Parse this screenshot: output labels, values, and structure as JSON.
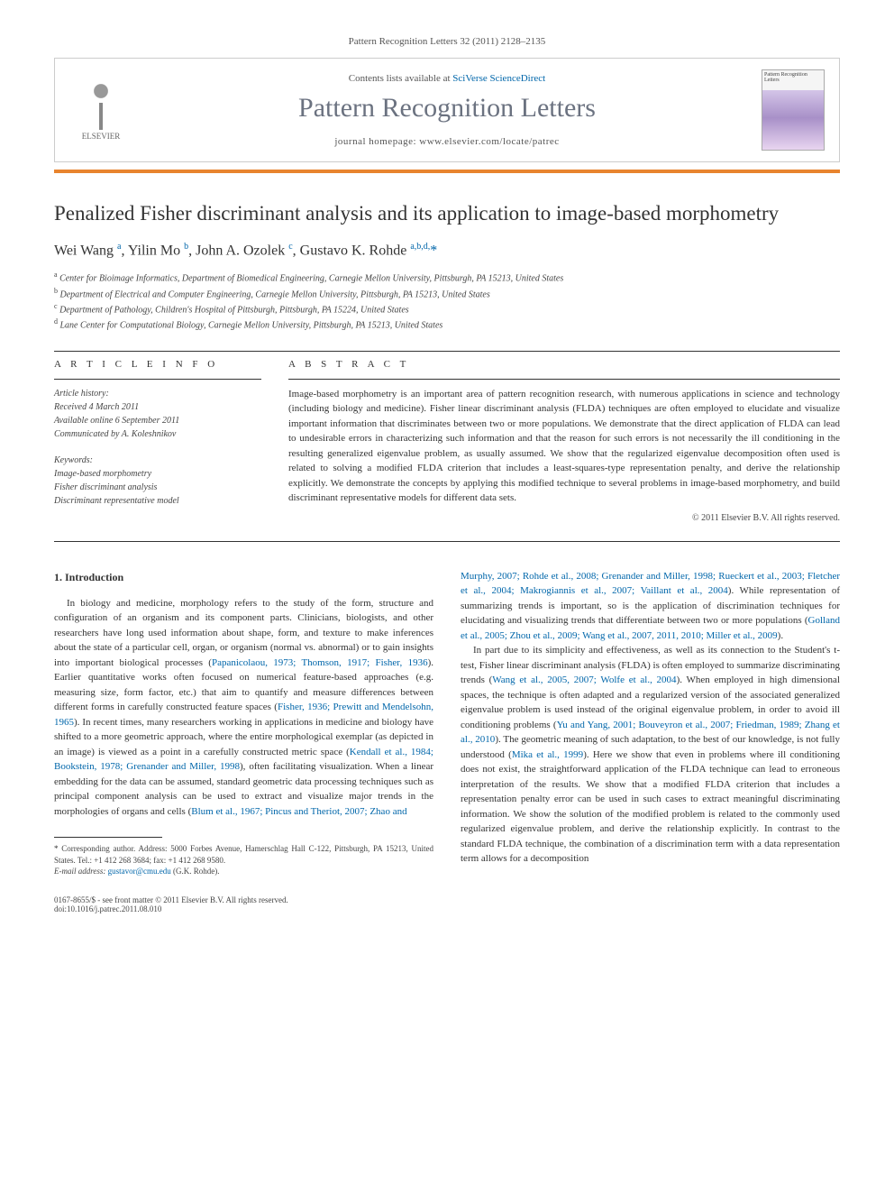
{
  "journal_ref": "Pattern Recognition Letters 32 (2011) 2128–2135",
  "header": {
    "elsevier": "ELSEVIER",
    "contents_prefix": "Contents lists available at ",
    "contents_link": "SciVerse ScienceDirect",
    "journal_title": "Pattern Recognition Letters",
    "homepage_prefix": "journal homepage: ",
    "homepage_url": "www.elsevier.com/locate/patrec",
    "cover_text": "Pattern Recognition Letters"
  },
  "title": "Penalized Fisher discriminant analysis and its application to image-based morphometry",
  "authors_html": "Wei Wang <sup>a</sup>, Yilin Mo <sup>b</sup>, John A. Ozolek <sup>c</sup>, Gustavo K. Rohde <sup>a,b,d,</sup><span class='star'>*</span>",
  "affiliations": [
    {
      "sup": "a",
      "text": "Center for Bioimage Informatics, Department of Biomedical Engineering, Carnegie Mellon University, Pittsburgh, PA 15213, United States"
    },
    {
      "sup": "b",
      "text": "Department of Electrical and Computer Engineering, Carnegie Mellon University, Pittsburgh, PA 15213, United States"
    },
    {
      "sup": "c",
      "text": "Department of Pathology, Children's Hospital of Pittsburgh, Pittsburgh, PA 15224, United States"
    },
    {
      "sup": "d",
      "text": "Lane Center for Computational Biology, Carnegie Mellon University, Pittsburgh, PA 15213, United States"
    }
  ],
  "info_heading": "A R T I C L E   I N F O",
  "abstract_heading": "A B S T R A C T",
  "history_label": "Article history:",
  "history": {
    "received": "Received 4 March 2011",
    "online": "Available online 6 September 2011",
    "communicated": "Communicated by A. Koleshnikov"
  },
  "keywords_label": "Keywords:",
  "keywords": [
    "Image-based morphometry",
    "Fisher discriminant analysis",
    "Discriminant representative model"
  ],
  "abstract": "Image-based morphometry is an important area of pattern recognition research, with numerous applications in science and technology (including biology and medicine). Fisher linear discriminant analysis (FLDA) techniques are often employed to elucidate and visualize important information that discriminates between two or more populations. We demonstrate that the direct application of FLDA can lead to undesirable errors in characterizing such information and that the reason for such errors is not necessarily the ill conditioning in the resulting generalized eigenvalue problem, as usually assumed. We show that the regularized eigenvalue decomposition often used is related to solving a modified FLDA criterion that includes a least-squares-type representation penalty, and derive the relationship explicitly. We demonstrate the concepts by applying this modified technique to several problems in image-based morphometry, and build discriminant representative models for different data sets.",
  "copyright": "© 2011 Elsevier B.V. All rights reserved.",
  "section1_heading": "1. Introduction",
  "col1_p1a": "In biology and medicine, morphology refers to the study of the form, structure and configuration of an organism and its component parts. Clinicians, biologists, and other researchers have long used information about shape, form, and texture to make inferences about the state of a particular cell, organ, or organism (normal vs. abnormal) or to gain insights into important biological processes (",
  "col1_cite1": "Papanicolaou, 1973; Thomson, 1917; Fisher, 1936",
  "col1_p1b": "). Earlier quantitative works often focused on numerical feature-based approaches (e.g. measuring size, form factor, etc.) that aim to quantify and measure differences between different forms in carefully constructed feature spaces (",
  "col1_cite2": "Fisher, 1936; Prewitt and Mendelsohn, 1965",
  "col1_p1c": "). In recent times, many researchers working in applications in medicine and biology have shifted to a more geometric approach, where the entire morphological exemplar (as depicted in an image) is viewed as a point in a carefully constructed metric space (",
  "col1_cite3": "Kendall et al., 1984; Bookstein, 1978; Grenander and Miller, 1998",
  "col1_p1d": "), often facilitating visualization. When a linear embedding for the data can be assumed, standard geometric data processing techniques such as principal component analysis can be used to extract and visualize major trends in the morphologies of organs and cells (",
  "col1_cite4": "Blum et al., 1967; Pincus and Theriot, 2007; Zhao and",
  "col2_cite1": "Murphy, 2007; Rohde et al., 2008; Grenander and Miller, 1998; Rueckert et al., 2003; Fletcher et al., 2004; Makrogiannis et al., 2007; Vaillant et al., 2004",
  "col2_p1a": "). While representation of summarizing trends is important, so is the application of discrimination techniques for elucidating and visualizing trends that differentiate between two or more populations (",
  "col2_cite2": "Golland et al., 2005; Zhou et al., 2009; Wang et al., 2007, 2011, 2010; Miller et al., 2009",
  "col2_p1b": ").",
  "col2_p2a": "In part due to its simplicity and effectiveness, as well as its connection to the Student's t-test, Fisher linear discriminant analysis (FLDA) is often employed to summarize discriminating trends (",
  "col2_cite3": "Wang et al., 2005, 2007; Wolfe et al., 2004",
  "col2_p2b": "). When employed in high dimensional spaces, the technique is often adapted and a regularized version of the associated generalized eigenvalue problem is used instead of the original eigenvalue problem, in order to avoid ill conditioning problems (",
  "col2_cite4": "Yu and Yang, 2001; Bouveyron et al., 2007; Friedman, 1989; Zhang et al., 2010",
  "col2_p2c": "). The geometric meaning of such adaptation, to the best of our knowledge, is not fully understood (",
  "col2_cite5": "Mika et al., 1999",
  "col2_p2d": "). Here we show that even in problems where ill conditioning does not exist, the straightforward application of the FLDA technique can lead to erroneous interpretation of the results. We show that a modified FLDA criterion that includes a representation penalty error can be used in such cases to extract meaningful discriminating information. We show the solution of the modified problem is related to the commonly used regularized eigenvalue problem, and derive the relationship explicitly. In contrast to the standard FLDA technique, the combination of a discrimination term with a data representation term allows for a decomposition",
  "footnote": {
    "star": "*",
    "corr": "Corresponding author. Address: 5000 Forbes Avenue, Hamerschlag Hall C-122, Pittsburgh, PA 15213, United States. Tel.: +1 412 268 3684; fax: +1 412 268 9580.",
    "email_label": "E-mail address:",
    "email": "gustavor@cmu.edu",
    "email_name": "(G.K. Rohde)."
  },
  "footer": {
    "issn": "0167-8655/$ - see front matter © 2011 Elsevier B.V. All rights reserved.",
    "doi": "doi:10.1016/j.patrec.2011.08.010"
  },
  "colors": {
    "orange_bar": "#e8842e",
    "link": "#0066aa",
    "title_gray": "#6b7280",
    "text": "#333333"
  }
}
